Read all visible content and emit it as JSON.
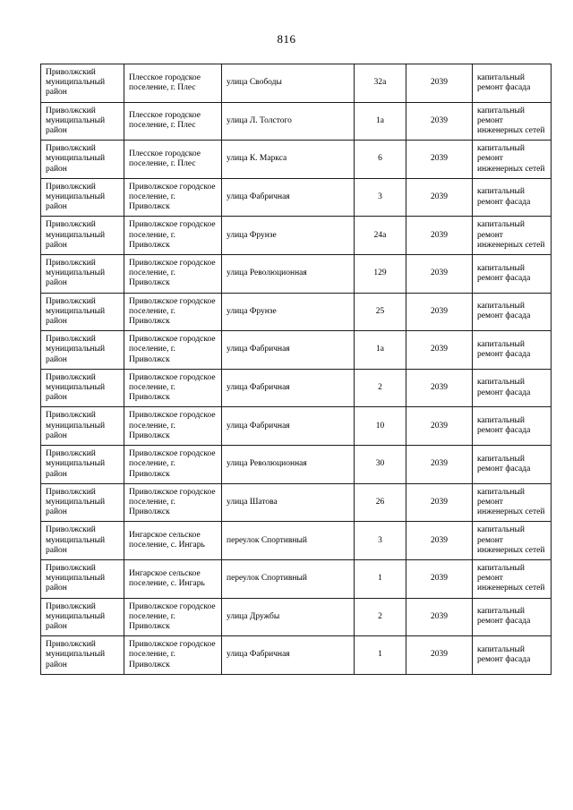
{
  "page": {
    "number": "816"
  },
  "table": {
    "rows": [
      {
        "district": "Приволжский муниципальный район",
        "settlement": "Плесское городское поселение, г. Плес",
        "street": "улица Свободы",
        "house": "32а",
        "year": "2039",
        "work": "капитальный ремонт фасада"
      },
      {
        "district": "Приволжский муниципальный район",
        "settlement": "Плесское городское поселение, г. Плес",
        "street": "улица Л. Толстого",
        "house": "1а",
        "year": "2039",
        "work": "капитальный ремонт инженерных сетей"
      },
      {
        "district": "Приволжский муниципальный район",
        "settlement": "Плесское городское поселение, г. Плес",
        "street": "улица К. Маркса",
        "house": "6",
        "year": "2039",
        "work": "капитальный ремонт инженерных сетей"
      },
      {
        "district": "Приволжский муниципальный район",
        "settlement": "Приволжское городское поселение, г. Приволжск",
        "street": "улица Фабричная",
        "house": "3",
        "year": "2039",
        "work": "капитальный ремонт фасада"
      },
      {
        "district": "Приволжский муниципальный район",
        "settlement": "Приволжское городское поселение, г. Приволжск",
        "street": "улица Фрунзе",
        "house": "24а",
        "year": "2039",
        "work": "капитальный ремонт инженерных сетей"
      },
      {
        "district": "Приволжский муниципальный район",
        "settlement": "Приволжское городское поселение, г. Приволжск",
        "street": "улица Революционная",
        "house": "129",
        "year": "2039",
        "work": "капитальный ремонт фасада"
      },
      {
        "district": "Приволжский муниципальный район",
        "settlement": "Приволжское городское поселение, г. Приволжск",
        "street": "улица Фрунзе",
        "house": "25",
        "year": "2039",
        "work": "капитальный ремонт фасада"
      },
      {
        "district": "Приволжский муниципальный район",
        "settlement": "Приволжское городское поселение, г. Приволжск",
        "street": "улица Фабричная",
        "house": "1а",
        "year": "2039",
        "work": "капитальный ремонт фасада"
      },
      {
        "district": "Приволжский муниципальный район",
        "settlement": "Приволжское городское поселение, г. Приволжск",
        "street": "улица Фабричная",
        "house": "2",
        "year": "2039",
        "work": "капитальный ремонт фасада"
      },
      {
        "district": "Приволжский муниципальный район",
        "settlement": "Приволжское городское поселение, г. Приволжск",
        "street": "улица Фабричная",
        "house": "10",
        "year": "2039",
        "work": "капитальный ремонт фасада"
      },
      {
        "district": "Приволжский муниципальный район",
        "settlement": "Приволжское городское поселение, г. Приволжск",
        "street": "улица Революционная",
        "house": "30",
        "year": "2039",
        "work": "капитальный ремонт фасада"
      },
      {
        "district": "Приволжский муниципальный район",
        "settlement": "Приволжское городское поселение, г. Приволжск",
        "street": "улица Шатова",
        "house": "26",
        "year": "2039",
        "work": "капитальный ремонт инженерных сетей"
      },
      {
        "district": "Приволжский муниципальный район",
        "settlement": "Ингарское сельское поселение, с. Ингарь",
        "street": "переулок Спортивный",
        "house": "3",
        "year": "2039",
        "work": "капитальный ремонт инженерных сетей"
      },
      {
        "district": "Приволжский муниципальный район",
        "settlement": "Ингарское сельское поселение, с. Ингарь",
        "street": "переулок Спортивный",
        "house": "1",
        "year": "2039",
        "work": "капитальный ремонт инженерных сетей"
      },
      {
        "district": "Приволжский муниципальный район",
        "settlement": "Приволжское городское поселение, г. Приволжск",
        "street": "улица Дружбы",
        "house": "2",
        "year": "2039",
        "work": "капитальный ремонт фасада"
      },
      {
        "district": "Приволжский муниципальный район",
        "settlement": "Приволжское городское поселение, г. Приволжск",
        "street": "улица Фабричная",
        "house": "1",
        "year": "2039",
        "work": "капитальный ремонт фасада"
      }
    ]
  }
}
